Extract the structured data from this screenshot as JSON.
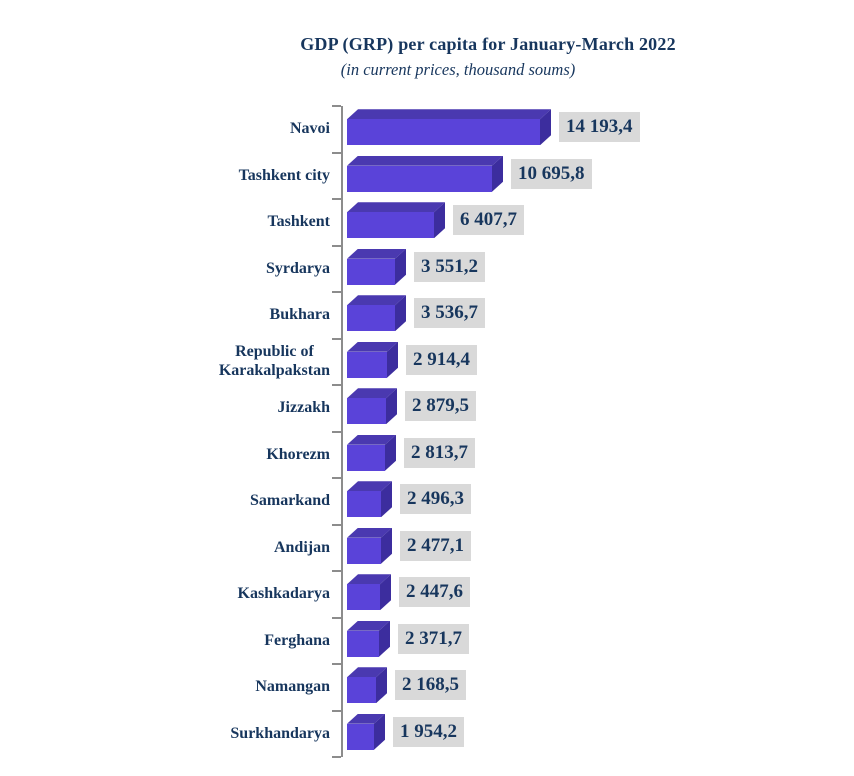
{
  "chart_data": {
    "type": "bar",
    "orientation": "horizontal",
    "title": "GDP (GRP) per capita for January-March 2022",
    "subtitle": "(in current prices, thousand soums)",
    "categories": [
      "Navoi",
      "Tashkent city",
      "Tashkent",
      "Syrdarya",
      "Bukhara",
      "Republic of\nKarakalpakstan",
      "Jizzakh",
      "Khorezm",
      "Samarkand",
      "Andijan",
      "Kashkadarya",
      "Ferghana",
      "Namangan",
      "Surkhandarya"
    ],
    "values": [
      14193.4,
      10695.8,
      6407.7,
      3551.2,
      3536.7,
      2914.4,
      2879.5,
      2813.7,
      2496.3,
      2477.1,
      2447.6,
      2371.7,
      2168.5,
      1954.2
    ],
    "value_labels": [
      "14 193,4",
      "10 695,8",
      "6 407,7",
      "3 551,2",
      "3 536,7",
      "2 914,4",
      "2 879,5",
      "2 813,7",
      "2 496,3",
      "2 477,1",
      "2 447,6",
      "2 371,7",
      "2 168,5",
      "1 954,2"
    ],
    "xlim": [
      0,
      14193.4
    ],
    "grid": false,
    "legend": false,
    "bar_style": "3d-block",
    "data_labels_position": "outside-end"
  },
  "colors": {
    "bar_front": "#5A43D9",
    "bar_top": "#4A39B0",
    "bar_side": "#3C2D9E",
    "value_label_bg": "#D9D9D9",
    "text_navy": "#17365D",
    "axis_gray": "#8C8C8C",
    "background": "#FFFFFF"
  }
}
